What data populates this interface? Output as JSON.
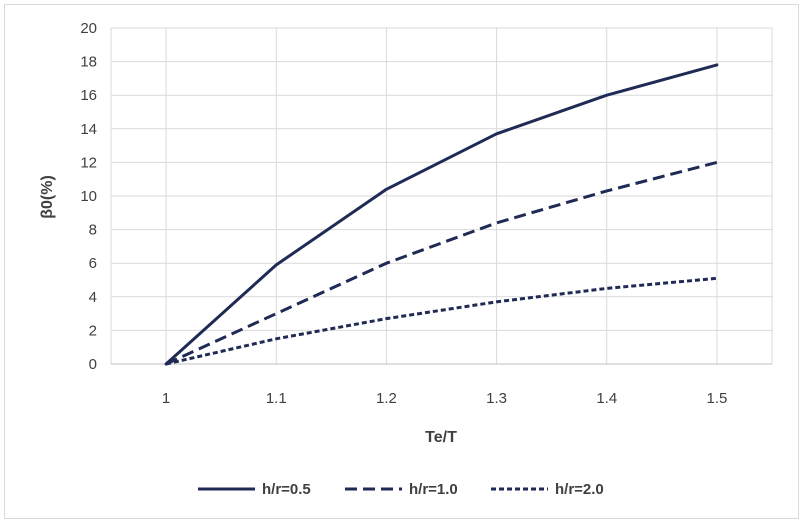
{
  "chart_data": {
    "type": "line",
    "title": "",
    "xlabel": "Te/T",
    "ylabel": "β0(%)",
    "x": [
      1,
      1.1,
      1.2,
      1.3,
      1.4,
      1.5
    ],
    "x_tick_labels": [
      "1",
      "1.1",
      "1.2",
      "1.3",
      "1.4",
      "1.5"
    ],
    "y_tick_labels": [
      "0",
      "2",
      "4",
      "6",
      "8",
      "10",
      "12",
      "14",
      "16",
      "18",
      "20"
    ],
    "xlim": [
      0.95,
      1.55
    ],
    "ylim": [
      0,
      20
    ],
    "grid": true,
    "legend_position": "bottom",
    "series": [
      {
        "name": "h/r=0.5",
        "style": "solid",
        "values": [
          0,
          5.9,
          10.4,
          13.7,
          16.0,
          17.8
        ]
      },
      {
        "name": "h/r=1.0",
        "style": "dashed",
        "values": [
          0,
          3.0,
          6.0,
          8.4,
          10.3,
          12.0
        ]
      },
      {
        "name": "h/r=2.0",
        "style": "dotted",
        "values": [
          0,
          1.5,
          2.7,
          3.7,
          4.5,
          5.1
        ]
      }
    ],
    "colors": {
      "series": "#1f2a55",
      "grid": "#d9d9d9",
      "axis": "#bfbfbf",
      "text": "#404040"
    }
  }
}
